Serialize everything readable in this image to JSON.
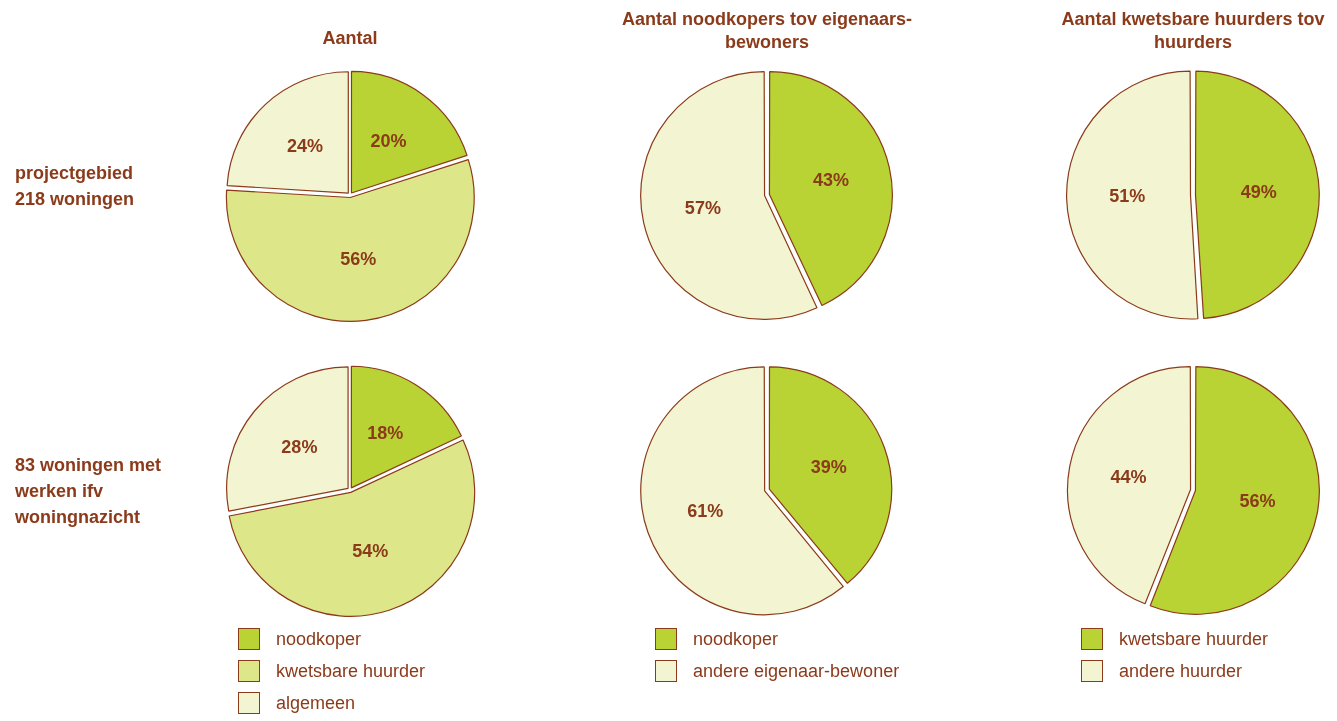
{
  "chart_data": [
    {
      "type": "pie",
      "title": "Aantal",
      "annotations": [
        "projectgebied 218 woningen"
      ],
      "categories": [
        null,
        null,
        null
      ],
      "values": [
        20,
        56,
        24
      ],
      "value_labels": [
        "20%",
        "56%",
        "24%"
      ],
      "colors": [
        "#b9d334",
        "#dde78a",
        "#f3f5d2"
      ],
      "legend": false
    },
    {
      "type": "pie",
      "title": "Aantal noodkopers tov eigenaars-bewoners",
      "categories": [
        null,
        null
      ],
      "values": [
        43,
        57
      ],
      "value_labels": [
        "43%",
        "57%"
      ],
      "colors": [
        "#b9d334",
        "#f3f5d2"
      ],
      "legend": false
    },
    {
      "type": "pie",
      "title": "Aantal kwetsbare huurders tov huurders",
      "categories": [
        null,
        null
      ],
      "values": [
        49,
        51
      ],
      "value_labels": [
        "49%",
        "51%"
      ],
      "colors": [
        "#b9d334",
        "#f3f5d2"
      ],
      "legend": false
    },
    {
      "type": "pie",
      "annotations": [
        "83 woningen met werken ifv woningnazicht"
      ],
      "categories": [
        "noodkoper",
        "kwetsbare huurder",
        "algemeen"
      ],
      "values": [
        18,
        54,
        28
      ],
      "value_labels": [
        "18%",
        "54%",
        "28%"
      ],
      "colors": [
        "#b9d334",
        "#dde78a",
        "#f3f5d2"
      ],
      "legend": "bottom"
    },
    {
      "type": "pie",
      "categories": [
        "noodkoper",
        "andere eigenaar-bewoner"
      ],
      "values": [
        39,
        61
      ],
      "value_labels": [
        "39%",
        "61%"
      ],
      "colors": [
        "#b9d334",
        "#f3f5d2"
      ],
      "legend": "bottom"
    },
    {
      "type": "pie",
      "categories": [
        "kwetsbare huurder",
        "andere huurder"
      ],
      "values": [
        56,
        44
      ],
      "value_labels": [
        "56%",
        "44%"
      ],
      "colors": [
        "#b9d334",
        "#f3f5d2"
      ],
      "legend": "bottom"
    }
  ]
}
